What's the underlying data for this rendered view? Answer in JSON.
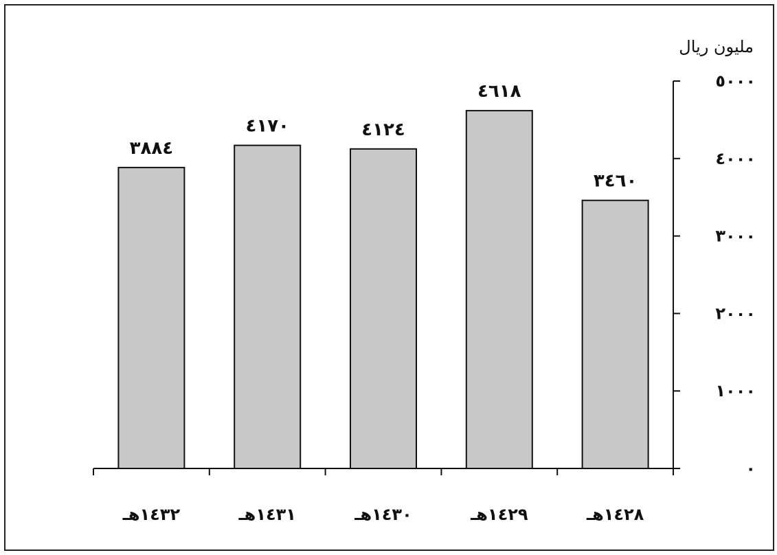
{
  "chart_data": {
    "type": "bar",
    "unit_label": "مليون ريال",
    "categories": [
      "١٤٣٢هـ",
      "١٤٣١هـ",
      "١٤٣٠هـ",
      "١٤٢٩هـ",
      "١٤٢٨هـ"
    ],
    "values": [
      3884,
      4170,
      4124,
      4618,
      3460
    ],
    "value_labels": [
      "٣٨٨٤",
      "٤١٧٠",
      "٤١٢٤",
      "٤٦١٨",
      "٣٤٦٠"
    ],
    "y_ticks": [
      0,
      1000,
      2000,
      3000,
      4000,
      5000
    ],
    "y_tick_labels": [
      "٠",
      "١٠٠٠",
      "٢٠٠٠",
      "٣٠٠٠",
      "٤٠٠٠",
      "٥٠٠٠"
    ],
    "ylim": [
      0,
      5000
    ],
    "y_axis_side": "right",
    "grid": false,
    "legend": "none",
    "colors": {
      "bar_fill": "#c8c8c8",
      "bar_stroke": "#111111",
      "axis": "#111111",
      "text": "#111111"
    }
  }
}
